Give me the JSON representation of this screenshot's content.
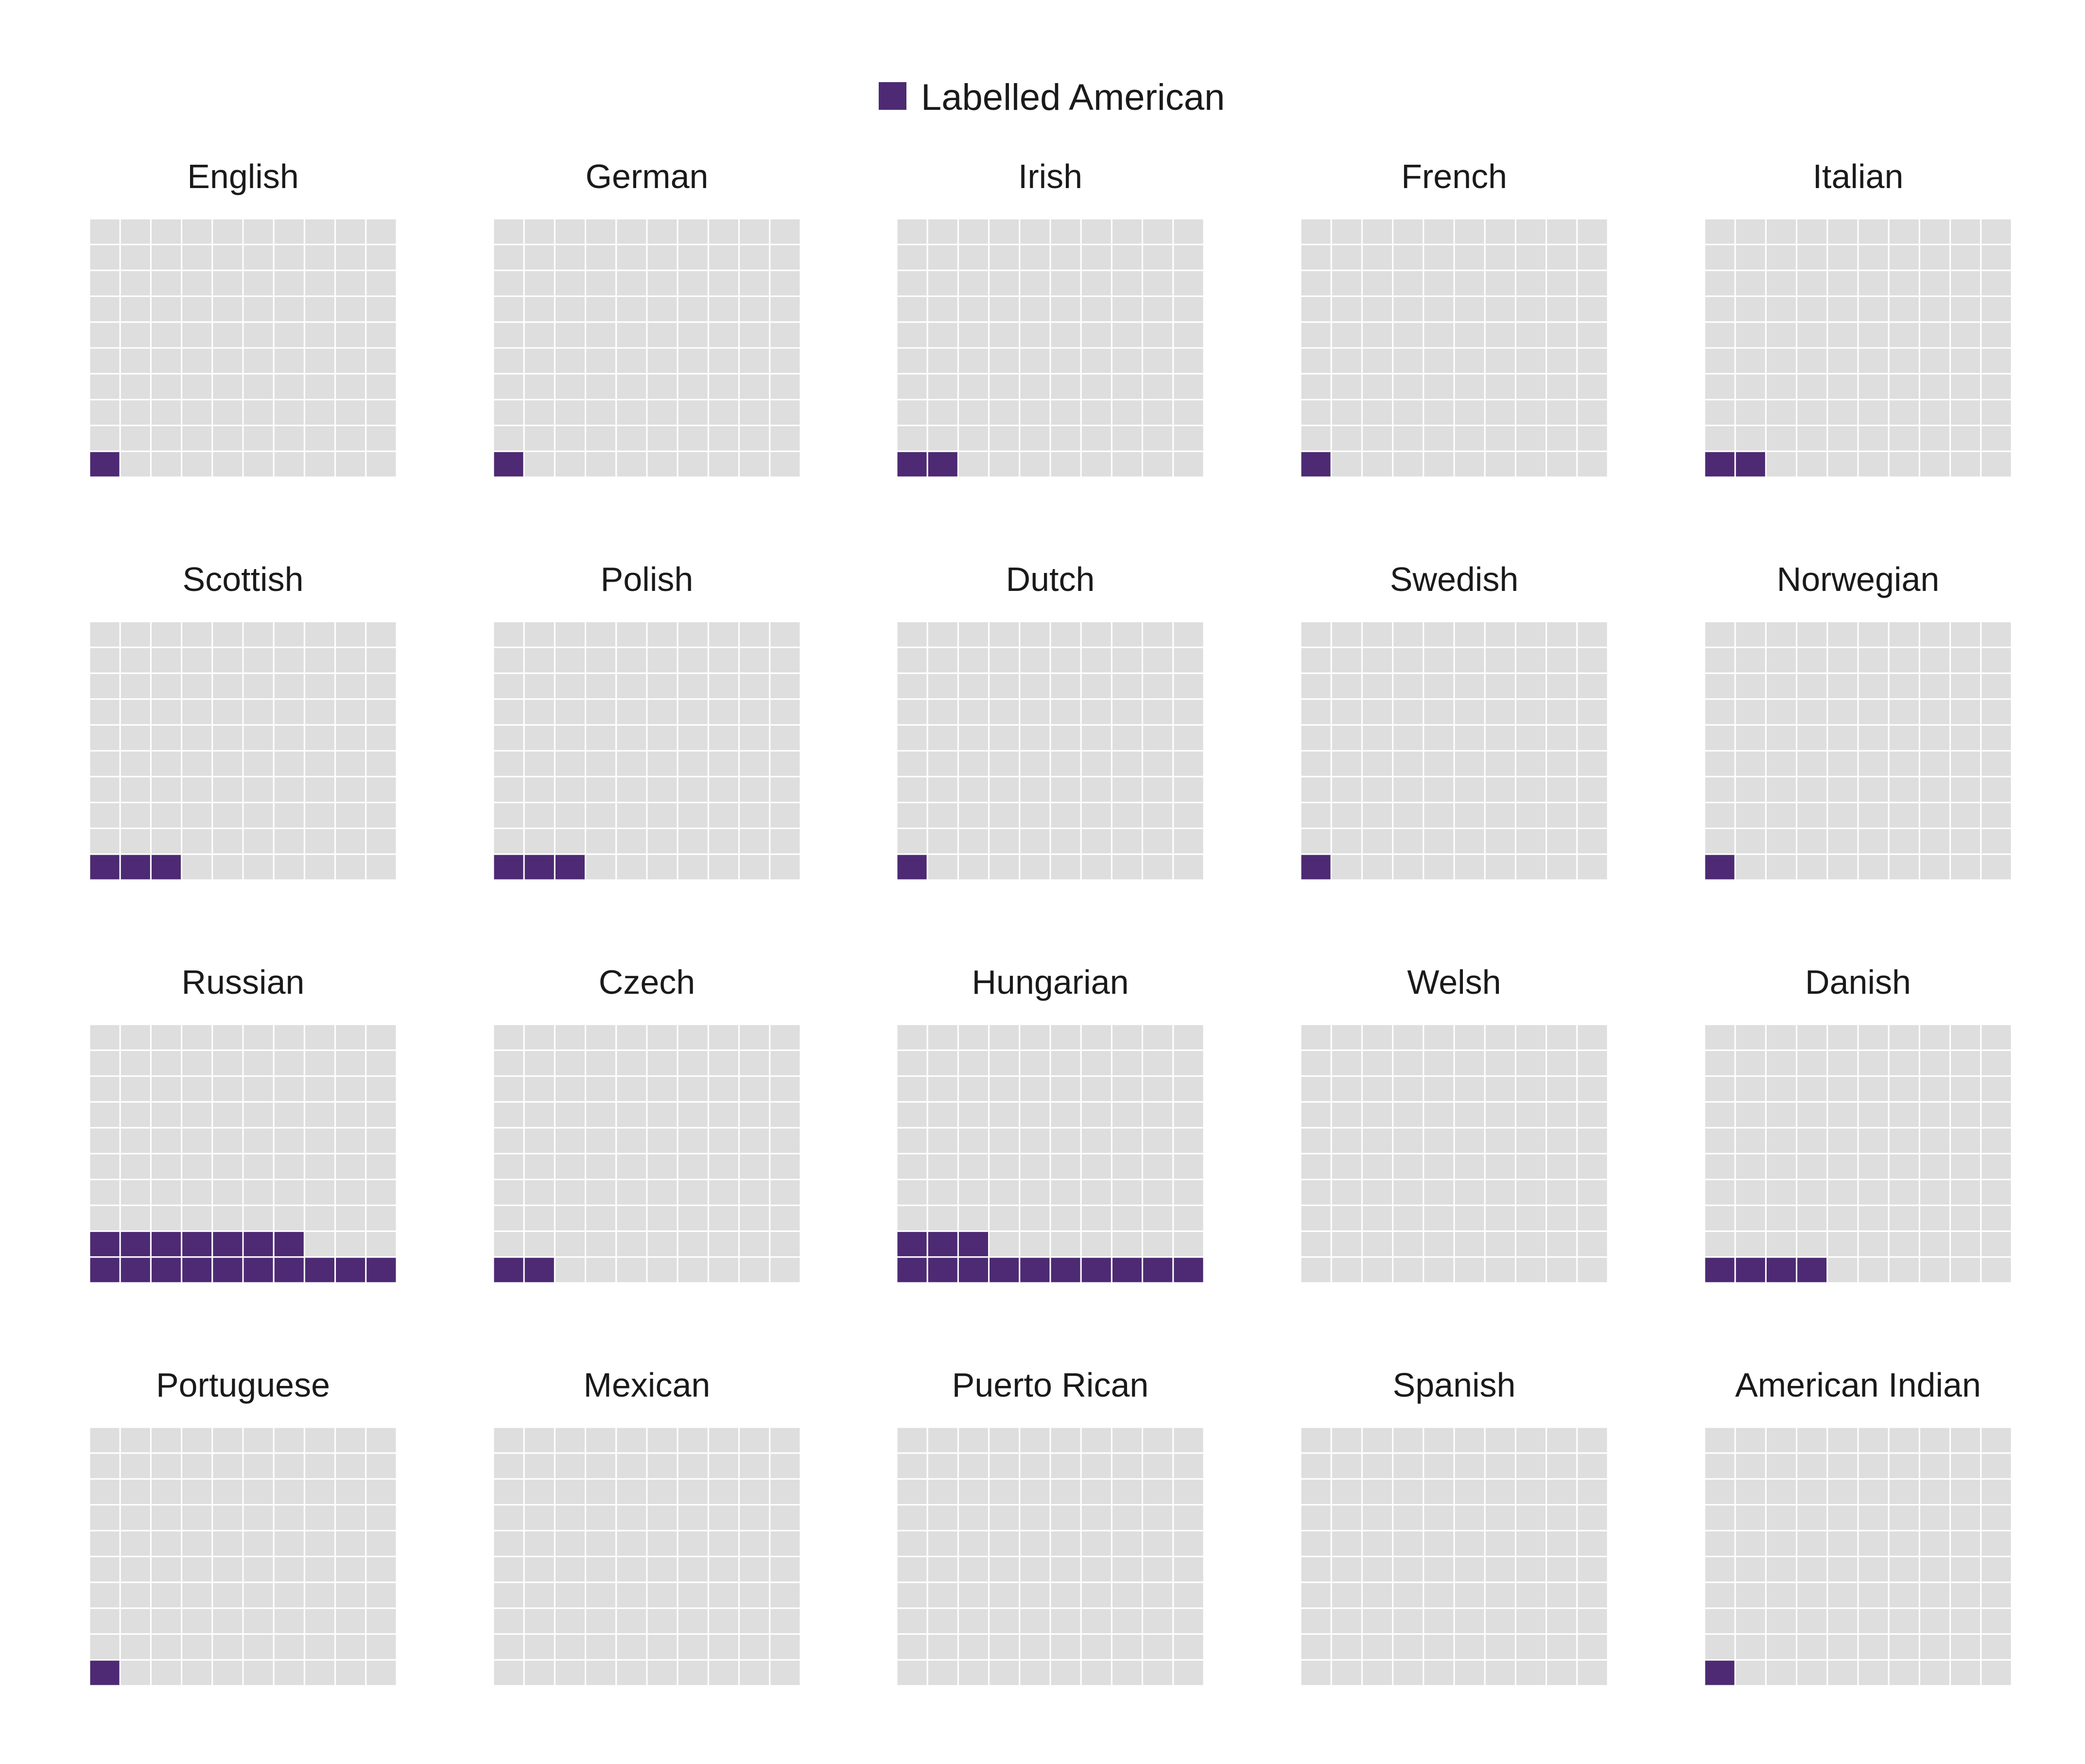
{
  "chart_data": {
    "type": "waffle",
    "grid": {
      "rows": 10,
      "cols": 10,
      "total": 100
    },
    "legend": {
      "label": "Labelled American",
      "placement": "top-center"
    },
    "colors": {
      "filled": "#4d2a73",
      "empty": "#dedede",
      "cell_border": "#ffffff"
    },
    "unit": "percent",
    "panels": [
      {
        "name": "English",
        "value": 1
      },
      {
        "name": "German",
        "value": 1
      },
      {
        "name": "Irish",
        "value": 2
      },
      {
        "name": "French",
        "value": 1
      },
      {
        "name": "Italian",
        "value": 2
      },
      {
        "name": "Scottish",
        "value": 3
      },
      {
        "name": "Polish",
        "value": 3
      },
      {
        "name": "Dutch",
        "value": 1
      },
      {
        "name": "Swedish",
        "value": 1
      },
      {
        "name": "Norwegian",
        "value": 1
      },
      {
        "name": "Russian",
        "value": 17
      },
      {
        "name": "Czech",
        "value": 2
      },
      {
        "name": "Hungarian",
        "value": 13
      },
      {
        "name": "Welsh",
        "value": 0
      },
      {
        "name": "Danish",
        "value": 4
      },
      {
        "name": "Portuguese",
        "value": 1
      },
      {
        "name": "Mexican",
        "value": 0
      },
      {
        "name": "Puerto Rican",
        "value": 0
      },
      {
        "name": "Spanish",
        "value": 0
      },
      {
        "name": "American Indian",
        "value": 1
      }
    ]
  }
}
